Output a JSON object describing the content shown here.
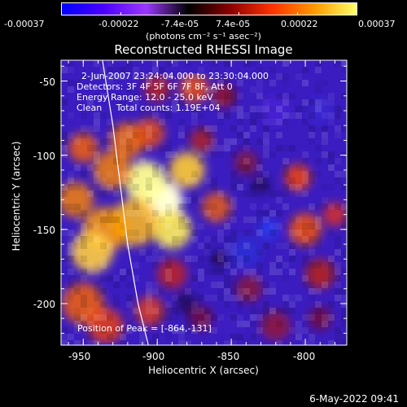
{
  "colorbar": {
    "tick_labels": [
      "-0.00037",
      "-0.00022",
      "-7.4e-05",
      "7.4e-05",
      "0.00022",
      "0.00037"
    ],
    "unit_label": "(photons cm⁻² s⁻¹ asec⁻²)",
    "colors": [
      "#0000ff",
      "#4b00ff",
      "#9b38ff",
      "#000000",
      "#8a0000",
      "#ff3300",
      "#ff9900",
      "#ffff66"
    ]
  },
  "image": {
    "title": "Reconstructed RHESSI Image",
    "annotations": [
      "2-Jun-2007 23:24:04.000 to 23:30:04.000",
      "Detectors: 3F 4F 5F 6F 7F 8F, Att 0",
      "Energy Range: 12.0 - 25.0 keV",
      "Clean     Total counts: 1.19E+04"
    ],
    "peak_label": "Position of Peak = [-864,-131]",
    "timestamp": "6-May-2022 09:41"
  },
  "chart_data": {
    "type": "heatmap",
    "title": "Reconstructed RHESSI Image",
    "xlabel": "Heliocentric X (arcsec)",
    "ylabel": "Heliocentric Y (arcsec)",
    "xlim": [
      -965,
      -772
    ],
    "ylim": [
      -228,
      -36
    ],
    "xticks": [
      -950,
      -900,
      -850,
      -800
    ],
    "yticks": [
      -50,
      -100,
      -150,
      -200
    ],
    "xtick_labels": [
      "-950",
      "-900",
      "-850",
      "-800"
    ],
    "ytick_labels": [
      "-50",
      "-100",
      "-150",
      "-200"
    ],
    "value_range": [
      -0.00037,
      0.00037
    ],
    "peak": [
      -864,
      -131
    ],
    "limb_curve": [
      [
        -937,
        -36
      ],
      [
        -930,
        -80
      ],
      [
        -925,
        -120
      ],
      [
        -920,
        -160
      ],
      [
        -913,
        -200
      ],
      [
        -906,
        -228
      ]
    ]
  }
}
